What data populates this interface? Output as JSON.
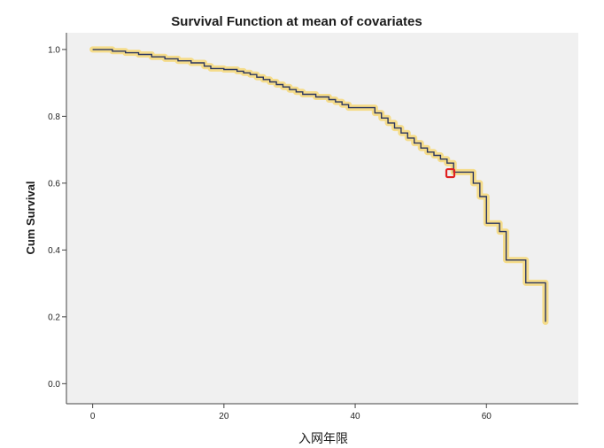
{
  "chart_data": {
    "type": "line",
    "title": "Survival Function at mean of covariates",
    "xlabel": "入网年限",
    "ylabel": "Cum Survival",
    "xlim": [
      -4,
      74
    ],
    "ylim": [
      -0.06,
      1.05
    ],
    "xticks": [
      {
        "value": 0,
        "label": "0"
      },
      {
        "value": 20,
        "label": "20"
      },
      {
        "value": 40,
        "label": "40"
      },
      {
        "value": 60,
        "label": "60"
      }
    ],
    "yticks": [
      {
        "value": 0.0,
        "label": "0.0"
      },
      {
        "value": 0.2,
        "label": "0.2"
      },
      {
        "value": 0.4,
        "label": "0.4"
      },
      {
        "value": 0.6,
        "label": "0.6"
      },
      {
        "value": 0.8,
        "label": "0.8"
      },
      {
        "value": 1.0,
        "label": "1.0"
      }
    ],
    "series": [
      {
        "name": "Survival Function",
        "step": true,
        "points": [
          [
            0,
            1.0
          ],
          [
            3,
            0.995
          ],
          [
            5,
            0.99
          ],
          [
            7,
            0.985
          ],
          [
            9,
            0.978
          ],
          [
            11,
            0.972
          ],
          [
            13,
            0.966
          ],
          [
            15,
            0.96
          ],
          [
            17,
            0.95
          ],
          [
            18,
            0.943
          ],
          [
            20,
            0.94
          ],
          [
            22,
            0.935
          ],
          [
            23,
            0.93
          ],
          [
            24,
            0.925
          ],
          [
            25,
            0.917
          ],
          [
            26,
            0.91
          ],
          [
            27,
            0.903
          ],
          [
            28,
            0.895
          ],
          [
            29,
            0.888
          ],
          [
            30,
            0.88
          ],
          [
            31,
            0.873
          ],
          [
            32,
            0.866
          ],
          [
            34,
            0.858
          ],
          [
            36,
            0.85
          ],
          [
            37,
            0.843
          ],
          [
            38,
            0.835
          ],
          [
            39,
            0.826
          ],
          [
            42,
            0.826
          ],
          [
            43,
            0.81
          ],
          [
            44,
            0.795
          ],
          [
            45,
            0.78
          ],
          [
            46,
            0.765
          ],
          [
            47,
            0.75
          ],
          [
            48,
            0.735
          ],
          [
            49,
            0.72
          ],
          [
            50,
            0.705
          ],
          [
            51,
            0.693
          ],
          [
            52,
            0.683
          ],
          [
            53,
            0.672
          ],
          [
            54,
            0.66
          ],
          [
            55,
            0.633
          ],
          [
            57,
            0.633
          ],
          [
            58,
            0.6
          ],
          [
            59,
            0.56
          ],
          [
            60,
            0.48
          ],
          [
            61,
            0.48
          ],
          [
            62,
            0.455
          ],
          [
            63,
            0.37
          ],
          [
            65,
            0.37
          ],
          [
            66,
            0.302
          ],
          [
            69,
            0.302
          ],
          [
            69,
            0.185
          ]
        ]
      }
    ],
    "annotations": [
      {
        "type": "marker",
        "x": 54.5,
        "y": 0.63,
        "color": "#e02020"
      }
    ],
    "grid": false,
    "colors": {
      "line": "#2a3560",
      "halo": "#f5dc8a",
      "plot_bg": "#f0f0f0",
      "axis": "#444444",
      "marker": "#e02020"
    }
  }
}
